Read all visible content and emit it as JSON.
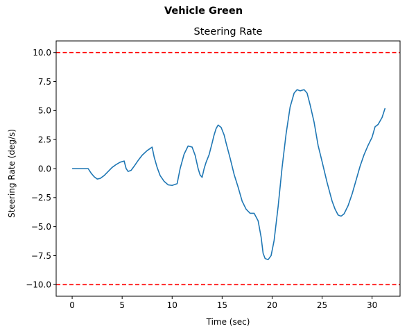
{
  "figure": {
    "suptitle": "Vehicle Green"
  },
  "chart_data": {
    "type": "line",
    "title": "Steering Rate",
    "xlabel": "Time (sec)",
    "ylabel": "Steering Rate (deg/s)",
    "xlim": [
      -1.6,
      32.8
    ],
    "ylim": [
      -11.0,
      11.0
    ],
    "xticks": [
      0,
      5,
      10,
      15,
      20,
      25,
      30
    ],
    "yticks": [
      -10.0,
      -7.5,
      -5.0,
      -2.5,
      0.0,
      2.5,
      5.0,
      7.5,
      10.0
    ],
    "ytick_labels": [
      "−10.0",
      "−7.5",
      "−5.0",
      "−2.5",
      "0.0",
      "2.5",
      "5.0",
      "7.5",
      "10.0"
    ],
    "grid": false,
    "series": [
      {
        "color": "#1f77b4",
        "x": [
          0.0,
          0.5,
          1.0,
          1.6,
          1.9,
          2.2,
          2.5,
          2.8,
          3.2,
          3.6,
          4.0,
          4.4,
          4.8,
          5.2,
          5.4,
          5.6,
          5.9,
          6.2,
          6.6,
          7.0,
          7.5,
          8.0,
          8.2,
          8.5,
          8.8,
          9.2,
          9.6,
          10.0,
          10.5,
          10.8,
          11.2,
          11.6,
          12.0,
          12.3,
          12.6,
          12.8,
          13.0,
          13.2,
          13.4,
          13.7,
          14.0,
          14.2,
          14.4,
          14.6,
          14.9,
          15.2,
          15.4,
          15.8,
          16.2,
          16.6,
          17.0,
          17.4,
          17.8,
          18.2,
          18.6,
          18.9,
          19.1,
          19.3,
          19.6,
          19.9,
          20.2,
          20.6,
          21.0,
          21.4,
          21.8,
          22.2,
          22.5,
          22.8,
          23.2,
          23.5,
          23.8,
          24.2,
          24.6,
          25.0,
          25.5,
          26.0,
          26.3,
          26.6,
          26.9,
          27.2,
          27.6,
          28.0,
          28.4,
          28.8,
          29.2,
          29.6,
          30.0,
          30.3,
          30.6,
          31.0,
          31.3
        ],
        "y": [
          0.0,
          0.0,
          0.0,
          0.0,
          -0.4,
          -0.7,
          -0.9,
          -0.85,
          -0.6,
          -0.25,
          0.1,
          0.35,
          0.55,
          0.65,
          0.0,
          -0.25,
          -0.15,
          0.2,
          0.7,
          1.15,
          1.55,
          1.85,
          1.0,
          0.1,
          -0.6,
          -1.1,
          -1.4,
          -1.45,
          -1.3,
          0.0,
          1.25,
          1.95,
          1.85,
          1.15,
          0.0,
          -0.55,
          -0.75,
          0.0,
          0.55,
          1.2,
          2.2,
          2.9,
          3.45,
          3.75,
          3.55,
          2.9,
          2.2,
          0.9,
          -0.5,
          -1.6,
          -2.8,
          -3.5,
          -3.85,
          -3.85,
          -4.5,
          -5.9,
          -7.3,
          -7.75,
          -7.85,
          -7.5,
          -6.2,
          -3.3,
          0.1,
          3.0,
          5.3,
          6.5,
          6.8,
          6.7,
          6.8,
          6.5,
          5.5,
          4.0,
          2.0,
          0.6,
          -1.2,
          -2.8,
          -3.5,
          -4.0,
          -4.1,
          -3.9,
          -3.2,
          -2.2,
          -1.0,
          0.2,
          1.2,
          2.0,
          2.7,
          3.6,
          3.8,
          4.4,
          5.2
        ]
      }
    ],
    "threshold_lines": [
      {
        "y": 10.0,
        "color": "#ff0000",
        "style": "dashed"
      },
      {
        "y": -10.0,
        "color": "#ff0000",
        "style": "dashed"
      }
    ]
  }
}
